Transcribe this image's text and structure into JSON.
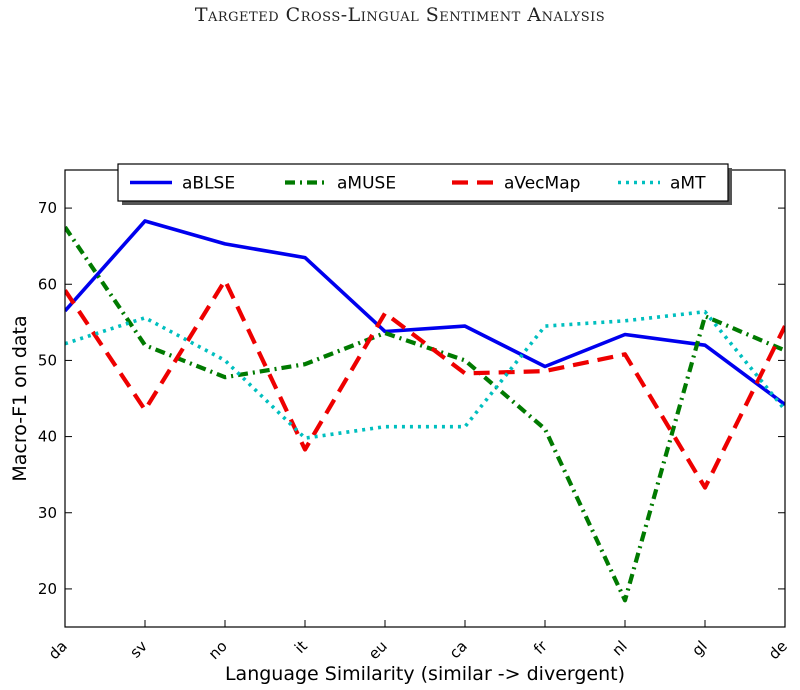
{
  "header": {
    "title": "Targeted Cross-Lingual Sentiment Analysis"
  },
  "chart_data": {
    "type": "line",
    "xlabel": "Language Similarity (similar -> divergent)",
    "ylabel": "Macro-F1 on data",
    "categories": [
      "da",
      "sv",
      "no",
      "it",
      "eu",
      "ca",
      "fr",
      "nl",
      "gl",
      "de"
    ],
    "ylim": [
      15,
      75
    ],
    "yticks": [
      20,
      30,
      40,
      50,
      60,
      70
    ],
    "grid": false,
    "legend_position": "top",
    "series": [
      {
        "name": "aBLSE",
        "color": "#0000ee",
        "style": "solid",
        "values": [
          56.5,
          68.3,
          65.3,
          63.5,
          53.8,
          54.5,
          49.2,
          53.4,
          52.0,
          44.2
        ]
      },
      {
        "name": "aMUSE",
        "color": "#007a00",
        "style": "dashdot",
        "values": [
          67.5,
          52.0,
          47.8,
          49.5,
          53.6,
          50.0,
          41.0,
          18.5,
          55.8,
          51.3
        ]
      },
      {
        "name": "aVecMap",
        "color": "#ee0000",
        "style": "dashed",
        "values": [
          59.2,
          43.5,
          60.5,
          38.3,
          56.2,
          48.3,
          48.6,
          50.8,
          33.3,
          54.5
        ]
      },
      {
        "name": "aMT",
        "color": "#00bfbf",
        "style": "dotted",
        "values": [
          52.2,
          55.6,
          50.0,
          39.8,
          41.3,
          41.3,
          54.5,
          55.2,
          56.4,
          43.5
        ]
      }
    ]
  }
}
